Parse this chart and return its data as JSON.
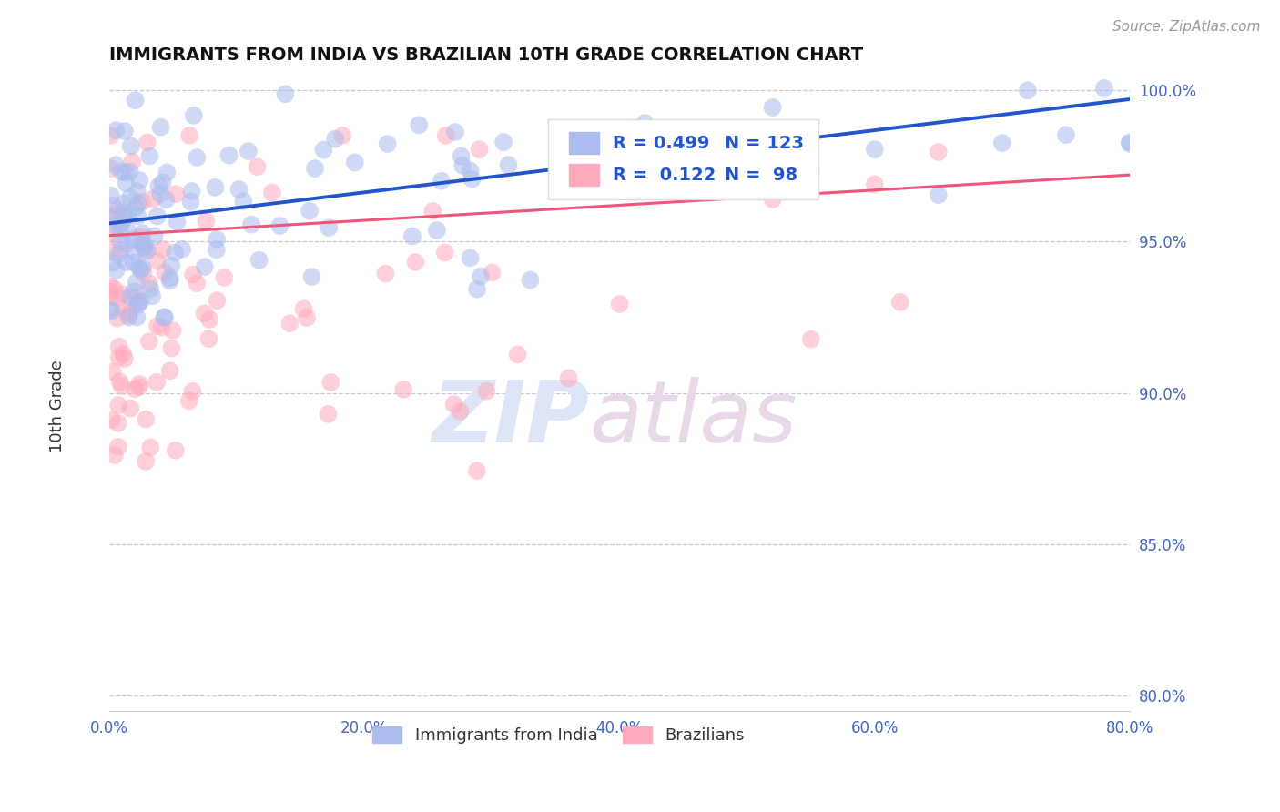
{
  "title": "IMMIGRANTS FROM INDIA VS BRAZILIAN 10TH GRADE CORRELATION CHART",
  "source_text": "Source: ZipAtlas.com",
  "ylabel": "10th Grade",
  "xlim": [
    0.0,
    0.8
  ],
  "ylim": [
    0.795,
    1.005
  ],
  "xticks": [
    0.0,
    0.2,
    0.4,
    0.6,
    0.8
  ],
  "xticklabels": [
    "0.0%",
    "20.0%",
    "40.0%",
    "60.0%",
    "80.0%"
  ],
  "yticks": [
    0.8,
    0.85,
    0.9,
    0.95,
    1.0
  ],
  "yticklabels": [
    "80.0%",
    "85.0%",
    "90.0%",
    "95.0%",
    "100.0%"
  ],
  "grid_color": "#bbbbcc",
  "background_color": "#ffffff",
  "india_color": "#aabbee",
  "brazil_color": "#ffaabc",
  "india_line_color": "#2255cc",
  "brazil_line_color": "#ee5577",
  "legend_R_india": "0.499",
  "legend_N_india": "123",
  "legend_R_brazil": "0.122",
  "legend_N_brazil": "98",
  "watermark_zip": "ZIP",
  "watermark_atlas": "atlas",
  "legend_label_india": "Immigrants from India",
  "legend_label_brazil": "Brazilians",
  "title_fontsize": 14,
  "tick_fontsize": 12,
  "tick_color": "#4466bb",
  "source_color": "#999999"
}
